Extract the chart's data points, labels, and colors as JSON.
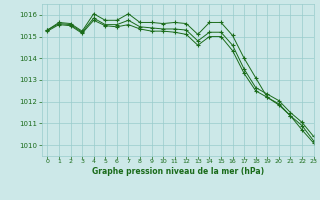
{
  "title": "Graphe pression niveau de la mer (hPa)",
  "bg_color": "#cce8e8",
  "grid_color": "#99cccc",
  "line_color": "#1a6b1a",
  "xlim": [
    -0.5,
    23
  ],
  "ylim": [
    1009.5,
    1016.5
  ],
  "yticks": [
    1010,
    1011,
    1012,
    1013,
    1014,
    1015,
    1016
  ],
  "xticks": [
    0,
    1,
    2,
    3,
    4,
    5,
    6,
    7,
    8,
    9,
    10,
    11,
    12,
    13,
    14,
    15,
    16,
    17,
    18,
    19,
    20,
    21,
    22,
    23
  ],
  "series": [
    [
      1015.3,
      1015.65,
      1015.6,
      1015.25,
      1016.05,
      1015.75,
      1015.75,
      1016.05,
      1015.65,
      1015.65,
      1015.6,
      1015.65,
      1015.6,
      1015.1,
      1015.65,
      1015.65,
      1015.05,
      1014.0,
      1013.1,
      1012.2,
      1011.85,
      1011.35,
      1010.7,
      1010.1
    ],
    [
      1015.3,
      1015.6,
      1015.55,
      1015.2,
      1015.85,
      1015.55,
      1015.55,
      1015.75,
      1015.45,
      1015.4,
      1015.35,
      1015.35,
      1015.3,
      1014.8,
      1015.2,
      1015.2,
      1014.6,
      1013.5,
      1012.65,
      1012.35,
      1012.05,
      1011.5,
      1011.05,
      1010.4
    ],
    [
      1015.25,
      1015.55,
      1015.5,
      1015.15,
      1015.75,
      1015.5,
      1015.45,
      1015.55,
      1015.35,
      1015.25,
      1015.25,
      1015.2,
      1015.1,
      1014.6,
      1015.0,
      1015.0,
      1014.35,
      1013.3,
      1012.5,
      1012.2,
      1011.9,
      1011.35,
      1010.9,
      1010.2
    ]
  ]
}
